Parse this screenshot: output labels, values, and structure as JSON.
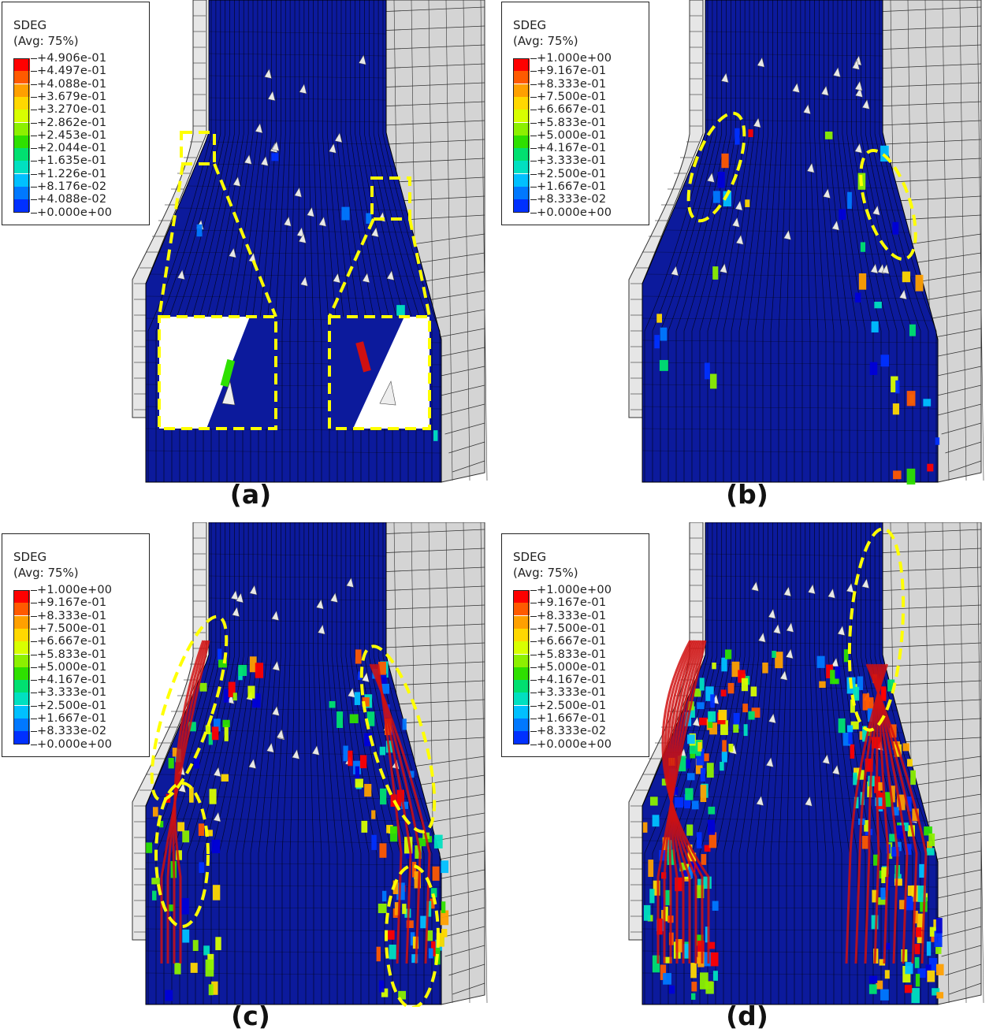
{
  "figure": {
    "panels": [
      {
        "id": "a",
        "caption": "(a)",
        "legend": {
          "variable": "SDEG",
          "averaging": "(Avg: 75%)",
          "values": [
            "+4.906e-01",
            "+4.497e-01",
            "+4.088e-01",
            "+3.679e-01",
            "+3.270e-01",
            "+2.862e-01",
            "+2.453e-01",
            "+2.044e-01",
            "+1.635e-01",
            "+1.226e-01",
            "+8.176e-02",
            "+4.088e-02",
            "+0.000e+00"
          ]
        }
      },
      {
        "id": "b",
        "caption": "(b)",
        "legend": {
          "variable": "SDEG",
          "averaging": "(Avg: 75%)",
          "values": [
            "+1.000e+00",
            "+9.167e-01",
            "+8.333e-01",
            "+7.500e-01",
            "+6.667e-01",
            "+5.833e-01",
            "+5.000e-01",
            "+4.167e-01",
            "+3.333e-01",
            "+2.500e-01",
            "+1.667e-01",
            "+8.333e-02",
            "+0.000e+00"
          ]
        }
      },
      {
        "id": "c",
        "caption": "(c)",
        "legend": {
          "variable": "SDEG",
          "averaging": "(Avg: 75%)",
          "values": [
            "+1.000e+00",
            "+9.167e-01",
            "+8.333e-01",
            "+7.500e-01",
            "+6.667e-01",
            "+5.833e-01",
            "+5.000e-01",
            "+4.167e-01",
            "+3.333e-01",
            "+2.500e-01",
            "+1.667e-01",
            "+8.333e-02",
            "+0.000e+00"
          ]
        }
      },
      {
        "id": "d",
        "caption": "(d)",
        "legend": {
          "variable": "SDEG",
          "averaging": "(Avg: 75%)",
          "values": [
            "+1.000e+00",
            "+9.167e-01",
            "+8.333e-01",
            "+7.500e-01",
            "+6.667e-01",
            "+5.833e-01",
            "+5.000e-01",
            "+4.167e-01",
            "+3.333e-01",
            "+2.500e-01",
            "+1.667e-01",
            "+8.333e-02",
            "+0.000e+00"
          ]
        }
      }
    ],
    "colormap": [
      "#ff0000",
      "#ff5a00",
      "#ffa000",
      "#ffd800",
      "#d8ff00",
      "#8cf000",
      "#2ee000",
      "#00e070",
      "#00e0c0",
      "#00c0ff",
      "#0078ff",
      "#0030ff",
      "#0000d8"
    ],
    "colors": {
      "undamaged": "#0c1a9c",
      "mesh_gray": "#d4d4d4",
      "highlight": "#ffff00"
    }
  }
}
